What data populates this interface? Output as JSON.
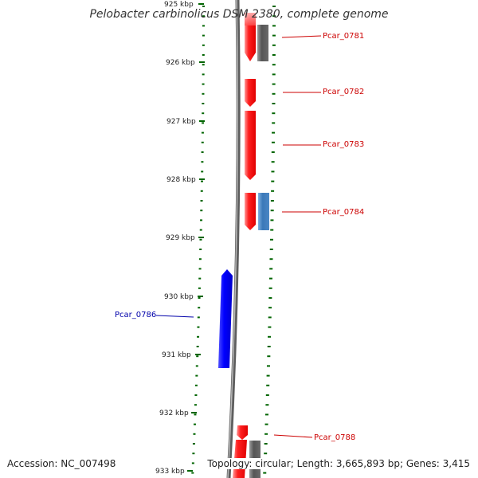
{
  "title": "Pelobacter carbinolicus DSM 2380, complete genome",
  "footer": {
    "accession_label": "Accession:",
    "accession": "NC_007498",
    "topology_label": "Topology:",
    "topology": "circular",
    "length_label": "Length:",
    "length": "3,665,893 bp",
    "genes_label": "Genes:",
    "genes": "3,415"
  },
  "colors": {
    "forward_gene": "#ff0000",
    "reverse_gene": "#0000ff",
    "forward_label": "#cc0000",
    "reverse_label": "#0000aa",
    "rna_or_other": "#666666",
    "blue_feature": "#4a86c5",
    "backbone": "#808080",
    "ticks": "#006400"
  },
  "kbp_labels": [
    "925 kbp",
    "926 kbp",
    "927 kbp",
    "928 kbp",
    "929 kbp",
    "930 kbp",
    "931 kbp",
    "932 kbp",
    "933 kbp"
  ],
  "gene_labels": [
    {
      "id": "Pcar_0781",
      "strand": "forward"
    },
    {
      "id": "Pcar_0782",
      "strand": "forward"
    },
    {
      "id": "Pcar_0783",
      "strand": "forward"
    },
    {
      "id": "Pcar_0784",
      "strand": "forward"
    },
    {
      "id": "Pcar_0786",
      "strand": "reverse"
    },
    {
      "id": "Pcar_0788",
      "strand": "forward"
    }
  ]
}
